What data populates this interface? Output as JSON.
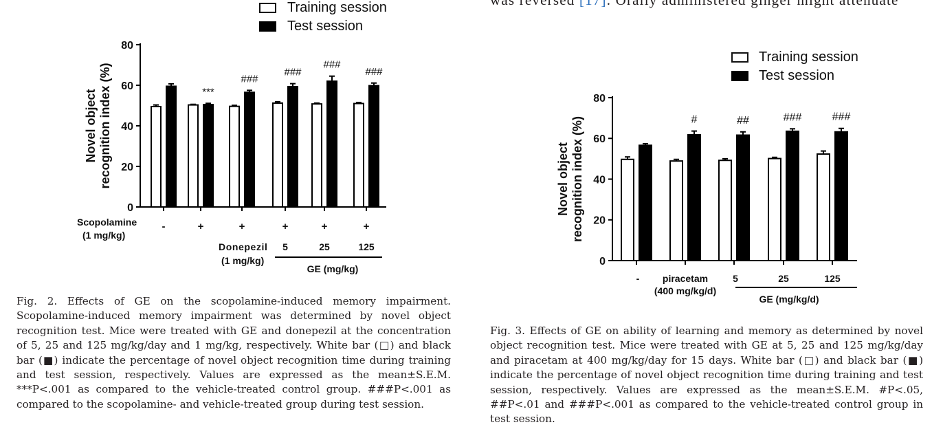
{
  "top_text": {
    "before": "was reversed ",
    "ref": "[17]",
    "after": ". Orally administered ginger might attenuate"
  },
  "fig2": {
    "caption": "Fig. 2. Effects of GE on the scopolamine-induced memory impairment. Scopolamine-induced memory impairment was determined by novel object recognition test. Mice were treated with GE and donepezil at the concentration of 5, 25 and 125 mg/kg/day and 1 mg/kg, respectively. White bar (□) and black bar (■) indicate the percentage of novel object recognition time during training and test session, respectively. Values are expressed as the mean±S.E.M. ***P<.001 as compared to the vehicle-treated control group. ###P<.001 as compared to the scopolamine- and vehicle-treated group during test session.",
    "legend": [
      "Training session",
      "Test session"
    ],
    "row_labels": {
      "scopolamine": [
        "Scopolamine",
        "(1 mg/kg)"
      ],
      "scopolamine_signs": [
        "-",
        "+",
        "+",
        "+",
        "+",
        "+"
      ],
      "donepezil": [
        "Donepezil",
        "(1 mg/kg)"
      ],
      "ge_doses": [
        "5",
        "25",
        "125"
      ],
      "ge_label": "GE (mg/kg)"
    }
  },
  "fig3": {
    "caption": "Fig. 3. Effects of GE on ability of learning and memory as determined by novel object recognition test. Mice were treated with GE at 5, 25 and 125 mg/kg/day and piracetam at 400 mg/kg/day for 15 days. White bar (□) and black bar (■) indicate the percentage of novel object recognition time during training and test session, respectively. Values are expressed as the mean±S.E.M. #P<.05, ##P<.01 and ###P<.001 as compared to the vehicle-treated control group in test session.",
    "legend": [
      "Training session",
      "Test session"
    ],
    "categories": [
      "-",
      "piracetam",
      "5",
      "25",
      "125"
    ],
    "category_sub": "(400 mg/kg/d)",
    "ge_label": "GE (mg/kg/d)"
  },
  "chart_data": [
    {
      "type": "bar",
      "ylabel": [
        "Novel object",
        "recognition index (%)"
      ],
      "ylim": [
        0,
        80
      ],
      "yticks": [
        0,
        20,
        40,
        60,
        80
      ],
      "categories": [
        "-",
        "+",
        "+ Donepezil",
        "+ 5",
        "+ 25",
        "+ 125"
      ],
      "series": [
        {
          "name": "Training session",
          "values": [
            49.5,
            50.3,
            49.6,
            51.2,
            50.8,
            51.0
          ],
          "errors": [
            0.8,
            0.3,
            0.5,
            0.7,
            0.4,
            0.5
          ],
          "color": "#ffffff"
        },
        {
          "name": "Test session",
          "values": [
            59.5,
            50.5,
            56.5,
            59.3,
            62.0,
            59.8
          ],
          "errors": [
            1.2,
            0.6,
            1.0,
            1.5,
            2.5,
            1.3
          ],
          "color": "#000000"
        }
      ],
      "annotations": [
        "",
        "***",
        "###",
        "###",
        "###",
        "###"
      ]
    },
    {
      "type": "bar",
      "ylabel": [
        "Novel object",
        "recognition index (%)"
      ],
      "ylim": [
        0,
        80
      ],
      "yticks": [
        0,
        20,
        40,
        60,
        80
      ],
      "categories": [
        "-",
        "piracetam (400 mg/kg/d)",
        "5",
        "25",
        "125"
      ],
      "series": [
        {
          "name": "Training session",
          "values": [
            49.7,
            48.9,
            49.2,
            50.1,
            52.3
          ],
          "errors": [
            1.2,
            0.8,
            0.8,
            0.6,
            1.5
          ],
          "color": "#ffffff"
        },
        {
          "name": "Test session",
          "values": [
            56.6,
            61.8,
            61.6,
            63.5,
            63.2
          ],
          "errors": [
            0.8,
            1.8,
            1.6,
            1.2,
            1.7
          ],
          "color": "#000000"
        }
      ],
      "annotations": [
        "",
        "#",
        "##",
        "###",
        "###"
      ]
    }
  ]
}
